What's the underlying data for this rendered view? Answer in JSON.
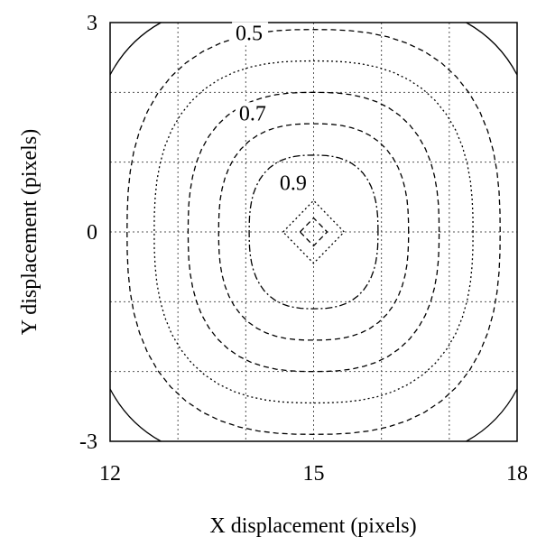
{
  "chart_data": {
    "type": "contour",
    "xlabel": "X displacement (pixels)",
    "ylabel": "Y displacement (pixels)",
    "xlim": [
      12,
      18
    ],
    "ylim": [
      -3,
      3
    ],
    "x_tick_labels": [
      "12",
      "15",
      "18"
    ],
    "y_tick_labels": [
      "3",
      "0",
      "-3"
    ],
    "grid": true,
    "center": [
      15,
      0
    ],
    "contour_labels": [
      {
        "text": "0.5",
        "x": 13.85,
        "y": 2.75
      },
      {
        "text": "0.7",
        "x": 13.9,
        "y": 1.6
      },
      {
        "text": "0.9",
        "x": 14.5,
        "y": 0.6
      }
    ],
    "contours": [
      {
        "level": 0.99,
        "style": "dashed",
        "rx": 0.2,
        "ry": 0.2,
        "shape": "diamond"
      },
      {
        "level": 0.95,
        "style": "dotted",
        "rx": 0.45,
        "ry": 0.45,
        "shape": "diamond"
      },
      {
        "level": 0.9,
        "style": "dashdot",
        "rx": 0.95,
        "ry": 1.1,
        "shape": "rounded"
      },
      {
        "level": 0.8,
        "style": "dashed",
        "rx": 1.4,
        "ry": 1.55,
        "shape": "rounded"
      },
      {
        "level": 0.7,
        "style": "dashed",
        "rx": 1.85,
        "ry": 2.0,
        "shape": "rounded"
      },
      {
        "level": 0.6,
        "style": "dotted",
        "rx": 2.35,
        "ry": 2.45,
        "shape": "rounded"
      },
      {
        "level": 0.5,
        "style": "dashed",
        "rx": 2.75,
        "ry": 2.9,
        "shape": "rounded"
      },
      {
        "level": 0.4,
        "style": "solid",
        "shape": "corners"
      }
    ]
  }
}
